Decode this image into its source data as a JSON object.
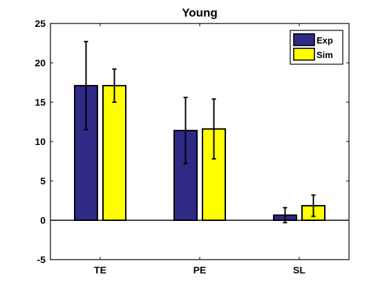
{
  "chart_data": {
    "type": "bar",
    "title": "Young",
    "categories": [
      "TE",
      "PE",
      "SL"
    ],
    "series": [
      {
        "name": "Exp",
        "color": "#2e2a86",
        "values": [
          17.1,
          11.4,
          0.65
        ],
        "errors": [
          5.6,
          4.2,
          0.95
        ]
      },
      {
        "name": "Sim",
        "color": "#ffff00",
        "values": [
          17.1,
          11.6,
          1.85
        ],
        "errors": [
          2.1,
          3.8,
          1.35
        ]
      }
    ],
    "ylim": [
      -5,
      25
    ],
    "yticks": [
      "-5",
      "0",
      "5",
      "10",
      "15",
      "20",
      "25"
    ],
    "legend": "top-right",
    "grid": false
  }
}
